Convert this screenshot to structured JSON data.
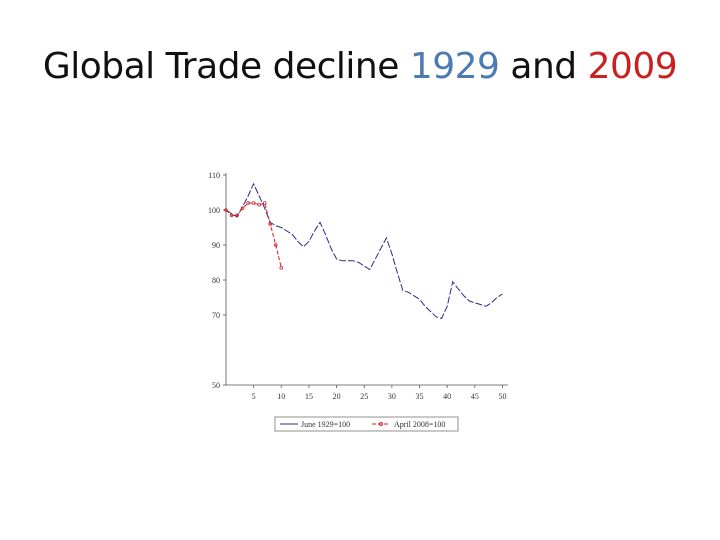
{
  "slide": {
    "title_prefix": "Global Trade decline ",
    "title_year1": "1929",
    "title_mid": " and ",
    "title_year2": "2009"
  },
  "colors": {
    "series1929": "#2b2b8f",
    "series2009": "#cc2222",
    "title1929": "#4a7bb5",
    "title2009": "#cc1f1f"
  },
  "chart_data": {
    "type": "line",
    "xlim": [
      0,
      51
    ],
    "ylim": [
      50,
      110
    ],
    "xticks": [
      5,
      10,
      15,
      20,
      25,
      30,
      35,
      40,
      45,
      50
    ],
    "yticks": [
      50,
      70,
      80,
      90,
      100,
      110
    ],
    "grid": false,
    "legend_position": "bottom",
    "series": [
      {
        "name": "June 1929=100",
        "color": "#2b2b8f",
        "style": "dashed",
        "x": [
          0,
          1,
          2,
          3,
          4,
          5,
          6,
          7,
          8,
          9,
          10,
          11,
          12,
          13,
          14,
          15,
          16,
          17,
          18,
          19,
          20,
          21,
          22,
          23,
          24,
          25,
          26,
          27,
          28,
          29,
          30,
          31,
          32,
          33,
          34,
          35,
          36,
          37,
          38,
          39,
          40,
          41,
          42,
          43,
          44,
          45,
          46,
          47,
          48,
          49,
          50
        ],
        "values": [
          100,
          99,
          98,
          101,
          104,
          107.5,
          104,
          100.5,
          96.5,
          95.5,
          95,
          94,
          93,
          91,
          89.5,
          91,
          94,
          96.5,
          93,
          89,
          86,
          85.5,
          85.5,
          85.5,
          85,
          84,
          83,
          86,
          89,
          92,
          87.5,
          82,
          77,
          76.5,
          75.5,
          74.5,
          72.5,
          71,
          69.5,
          69,
          72.5,
          79.5,
          77.5,
          75.5,
          74,
          73.5,
          73,
          72.5,
          73.5,
          75,
          76
        ]
      },
      {
        "name": "April 2008=100",
        "color": "#cc2222",
        "style": "dashed-markers",
        "x": [
          0,
          1,
          2,
          3,
          4,
          5,
          6,
          7,
          8,
          9,
          10
        ],
        "values": [
          100,
          98.5,
          98.5,
          100.5,
          102,
          102,
          101.5,
          102,
          96,
          90,
          83.5
        ]
      }
    ]
  }
}
